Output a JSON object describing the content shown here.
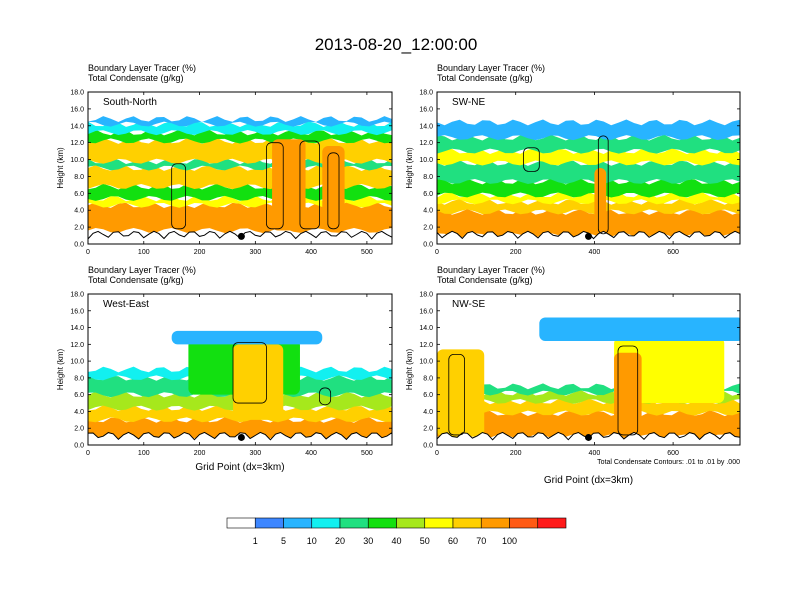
{
  "title": "2013-08-20_12:00:00",
  "chart_data": [
    {
      "type": "heatmap",
      "panel": "South-North",
      "header_line1": "Boundary Layer Tracer   (%)",
      "header_line2": "Total Condensate   (g/kg)",
      "ylabel": "Height (km)",
      "xlabel": "",
      "xlim": [
        0,
        545
      ],
      "ylim": [
        0,
        18
      ],
      "x_ticks": [
        0,
        100,
        200,
        300,
        400,
        500
      ],
      "y_ticks": [
        "0.0",
        "2.0",
        "4.0",
        "6.0",
        "8.0",
        "10.0",
        "12.0",
        "14.0",
        "16.0",
        "18.0"
      ],
      "marker_x": 275,
      "bands": [
        {
          "level": 70,
          "bottom": 1.6,
          "top": 4.6
        },
        {
          "level": 50,
          "bottom": 4.6,
          "top": 5.4
        },
        {
          "level": 30,
          "bottom": 5.4,
          "top": 6.8
        },
        {
          "level": 60,
          "bottom": 6.8,
          "top": 9.0
        },
        {
          "level": 20,
          "bottom": 9.0,
          "top": 9.8
        },
        {
          "level": 60,
          "bottom": 9.8,
          "top": 12.2
        },
        {
          "level": 30,
          "bottom": 12.2,
          "top": 13.2
        },
        {
          "level": 10,
          "bottom": 13.2,
          "top": 14.2
        },
        {
          "level": 5,
          "bottom": 14.2,
          "top": 14.8
        }
      ],
      "plumes": [
        {
          "x": 330,
          "w": 60,
          "level": 70,
          "bottom": 1.6,
          "top": 12.4
        },
        {
          "x": 420,
          "w": 40,
          "level": 70,
          "bottom": 1.6,
          "top": 11.6
        }
      ],
      "contours": [
        {
          "x": 150,
          "w": 25,
          "bottom": 1.8,
          "top": 9.5
        },
        {
          "x": 320,
          "w": 30,
          "bottom": 1.8,
          "top": 12.0
        },
        {
          "x": 380,
          "w": 35,
          "bottom": 1.8,
          "top": 12.2
        },
        {
          "x": 430,
          "w": 20,
          "bottom": 1.8,
          "top": 10.8
        }
      ]
    },
    {
      "type": "heatmap",
      "panel": "SW-NE",
      "header_line1": "Boundary Layer Tracer   (%)",
      "header_line2": "Total Condensate   (g/kg)",
      "ylabel": "Height (km)",
      "xlabel": "",
      "xlim": [
        0,
        770
      ],
      "ylim": [
        0,
        18
      ],
      "x_ticks": [
        0,
        200,
        400,
        600
      ],
      "y_ticks": [
        "0.0",
        "2.0",
        "4.0",
        "6.0",
        "8.0",
        "10.0",
        "12.0",
        "14.0",
        "16.0",
        "18.0"
      ],
      "marker_x": 385,
      "bands": [
        {
          "level": 70,
          "bottom": 1.0,
          "top": 3.8
        },
        {
          "level": 60,
          "bottom": 3.8,
          "top": 5.0
        },
        {
          "level": 50,
          "bottom": 5.0,
          "top": 5.8
        },
        {
          "level": 30,
          "bottom": 5.8,
          "top": 7.4
        },
        {
          "level": 20,
          "bottom": 7.4,
          "top": 9.6
        },
        {
          "level": 50,
          "bottom": 9.6,
          "top": 11.0
        },
        {
          "level": 20,
          "bottom": 11.0,
          "top": 12.6
        },
        {
          "level": 5,
          "bottom": 12.6,
          "top": 14.4
        }
      ],
      "plumes": [
        {
          "x": 400,
          "w": 30,
          "level": 70,
          "bottom": 1.0,
          "top": 9.0
        }
      ],
      "contours": [
        {
          "x": 410,
          "w": 25,
          "bottom": 1.2,
          "top": 12.8
        },
        {
          "x": 220,
          "w": 40,
          "bottom": 8.6,
          "top": 11.4
        }
      ]
    },
    {
      "type": "heatmap",
      "panel": "West-East",
      "header_line1": "Boundary Layer Tracer   (%)",
      "header_line2": "Total Condensate   (g/kg)",
      "ylabel": "Height (km)",
      "xlabel": "Grid Point (dx=3km)",
      "xlim": [
        0,
        545
      ],
      "ylim": [
        0,
        18
      ],
      "x_ticks": [
        0,
        100,
        200,
        300,
        400,
        500
      ],
      "y_ticks": [
        "0.0",
        "2.0",
        "4.0",
        "6.0",
        "8.0",
        "10.0",
        "12.0",
        "14.0",
        "16.0",
        "18.0"
      ],
      "marker_x": 275,
      "bands": [
        {
          "level": 70,
          "bottom": 0.5,
          "top": 3.0
        },
        {
          "level": 60,
          "bottom": 3.0,
          "top": 4.4
        },
        {
          "level": 40,
          "bottom": 4.4,
          "top": 6.0
        },
        {
          "level": 20,
          "bottom": 6.0,
          "top": 8.0
        },
        {
          "level": 10,
          "bottom": 8.0,
          "top": 9.0
        }
      ],
      "plumes": [
        {
          "x": 180,
          "w": 200,
          "level": 30,
          "bottom": 6.0,
          "top": 12.6
        },
        {
          "x": 260,
          "w": 90,
          "level": 60,
          "bottom": 3.0,
          "top": 12.0
        },
        {
          "x": 150,
          "w": 270,
          "level": 5,
          "bottom": 12.0,
          "top": 13.6
        }
      ],
      "contours": [
        {
          "x": 260,
          "w": 60,
          "bottom": 5.0,
          "top": 12.2
        },
        {
          "x": 415,
          "w": 20,
          "bottom": 4.8,
          "top": 6.8
        }
      ]
    },
    {
      "type": "heatmap",
      "panel": "NW-SE",
      "header_line1": "Boundary Layer Tracer   (%)",
      "header_line2": "Total Condensate   (g/kg)",
      "ylabel": "Height (km)",
      "xlabel": "Grid Point (dx=3km)",
      "xlim": [
        0,
        770
      ],
      "ylim": [
        0,
        18
      ],
      "x_ticks": [
        0,
        200,
        400,
        600
      ],
      "y_ticks": [
        "0.0",
        "2.0",
        "4.0",
        "6.0",
        "8.0",
        "10.0",
        "12.0",
        "14.0",
        "16.0",
        "18.0"
      ],
      "marker_x": 385,
      "bands": [
        {
          "level": 70,
          "bottom": 1.0,
          "top": 3.8
        },
        {
          "level": 60,
          "bottom": 3.8,
          "top": 5.2
        },
        {
          "level": 40,
          "bottom": 5.2,
          "top": 6.2
        },
        {
          "level": 20,
          "bottom": 6.2,
          "top": 7.0
        }
      ],
      "plumes": [
        {
          "x": 0,
          "w": 120,
          "level": 60,
          "bottom": 1.0,
          "top": 11.4
        },
        {
          "x": 450,
          "w": 280,
          "level": 50,
          "bottom": 5.0,
          "top": 12.8
        },
        {
          "x": 260,
          "w": 520,
          "level": 5,
          "bottom": 12.4,
          "top": 15.2
        },
        {
          "x": 450,
          "w": 70,
          "level": 70,
          "bottom": 1.0,
          "top": 11.0
        }
      ],
      "contours": [
        {
          "x": 30,
          "w": 40,
          "bottom": 1.2,
          "top": 10.8
        },
        {
          "x": 460,
          "w": 50,
          "bottom": 1.2,
          "top": 11.8
        }
      ]
    }
  ],
  "footnote": "Total Condensate Contours: .01 to .01 by .000",
  "colorbar": {
    "labels": [
      "1",
      "5",
      "10",
      "20",
      "30",
      "40",
      "50",
      "60",
      "70",
      "100"
    ],
    "colors": [
      "#ffffff",
      "#3d86ff",
      "#28b4ff",
      "#12f0f0",
      "#20e080",
      "#12e010",
      "#a6e81c",
      "#ffff00",
      "#ffd000",
      "#ff9a00",
      "#ff5a14",
      "#ff1a1a"
    ],
    "level_values": [
      0,
      1,
      5,
      10,
      20,
      30,
      40,
      50,
      60,
      70,
      100,
      101
    ]
  },
  "colors": {
    "marker": "#000000",
    "contour": "#000000",
    "frame": "#000000"
  }
}
